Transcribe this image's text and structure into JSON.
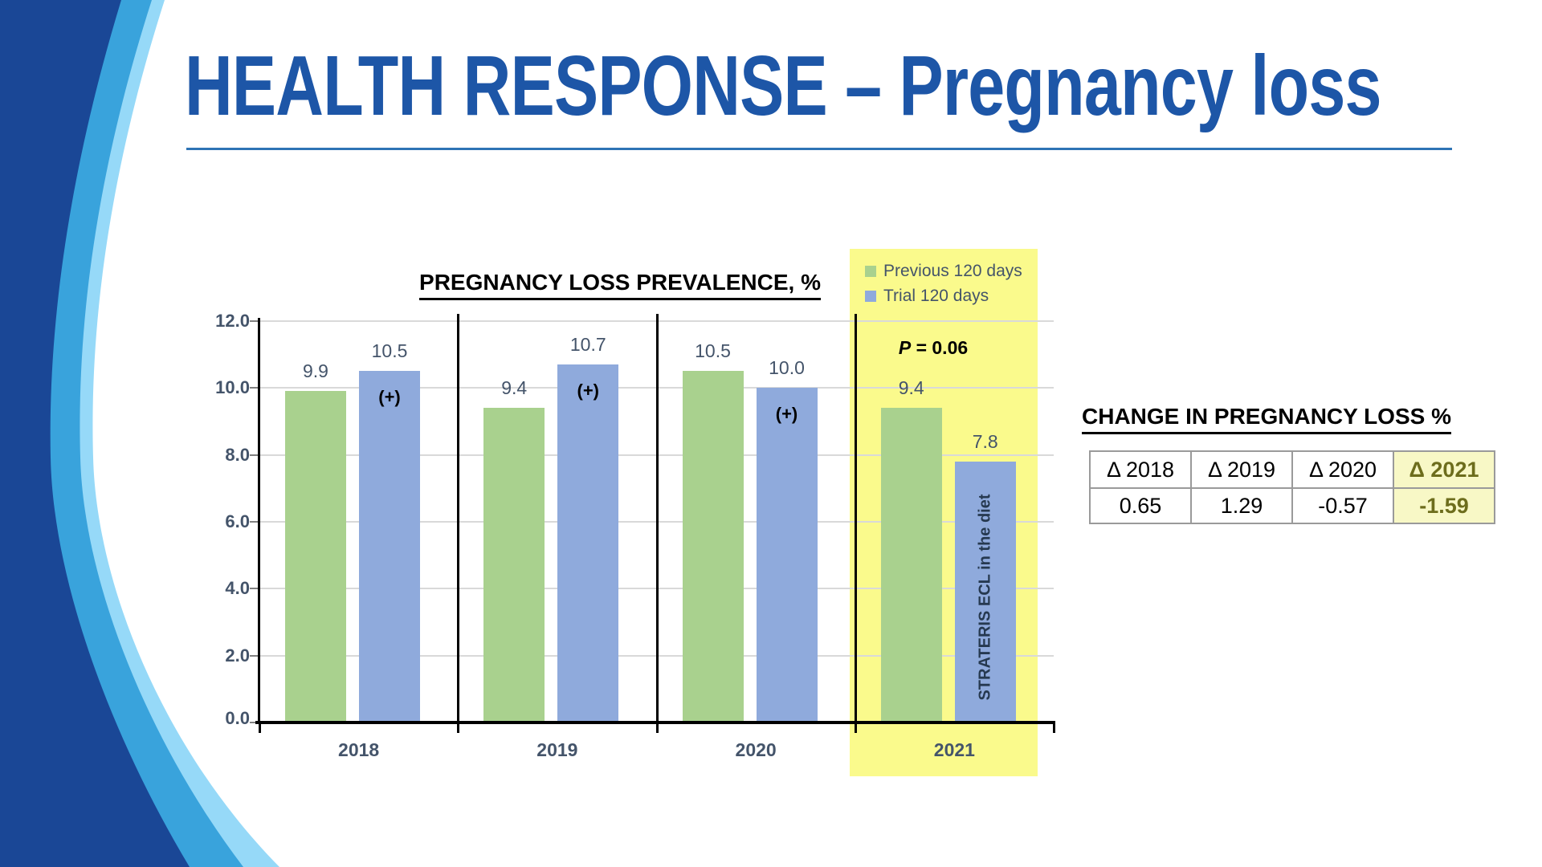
{
  "slide": {
    "title": "HEALTH RESPONSE – Pregnancy loss",
    "colors": {
      "title_blue": "#1D56A7",
      "rule_blue": "#2E74B5",
      "axis_text": "#44546A",
      "gridline": "#D9D9D9",
      "axis_black": "#000000",
      "tick_gray": "#7f7f7f",
      "highlight_yellow": "#FAFA8C",
      "table_highlight_yellow": "#F8F8C6",
      "olive_text": "#6D6D1C",
      "annotation_navy": "#263950",
      "deco_navy": "#1A4796",
      "deco_mid_blue": "#39A3DC",
      "deco_light_blue": "#96D9F8"
    }
  },
  "chart_data": {
    "type": "bar",
    "title": "PREGNANCY LOSS PREVALENCE, %",
    "categories": [
      "2018",
      "2019",
      "2020",
      "2021"
    ],
    "series": [
      {
        "name": "Previous 120 days",
        "color": "#A9D18E",
        "values": [
          9.9,
          9.4,
          10.5,
          9.4
        ]
      },
      {
        "name": "Trial 120 days",
        "color": "#8FAADC",
        "values": [
          10.5,
          10.7,
          10.0,
          7.8
        ]
      }
    ],
    "trial_bar_annotations": [
      "(+)",
      "(+)",
      "(+)",
      "STRATERIS ECL in the diet"
    ],
    "p_value_label": "P = 0.06",
    "highlighted_category": "2021",
    "ylim": [
      0,
      12
    ],
    "y_tick_step": 2,
    "y_tick_format": "one-decimal",
    "grid": true,
    "legend_position": "top-right"
  },
  "change_table": {
    "title": "CHANGE IN PREGNANCY LOSS %",
    "headers": [
      "Δ 2018",
      "Δ 2019",
      "Δ 2020",
      "Δ 2021"
    ],
    "values": [
      "0.65",
      "1.29",
      "-0.57",
      "-1.59"
    ],
    "highlighted_column_index": 3
  }
}
